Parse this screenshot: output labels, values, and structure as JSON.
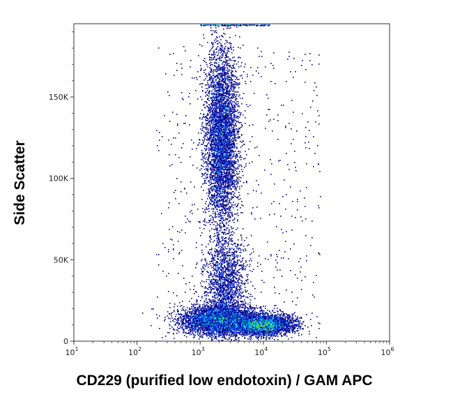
{
  "chart_data": {
    "type": "scatter",
    "title": "",
    "xlabel": "CD229 (purified low endotoxin) / GAM APC",
    "ylabel": "Side Scatter",
    "x_scale": "log",
    "xlim": [
      10,
      1000000
    ],
    "ylim": [
      0,
      195000
    ],
    "x_ticks": [
      {
        "value": 10,
        "base": "10",
        "exp": "1"
      },
      {
        "value": 100,
        "base": "10",
        "exp": "2"
      },
      {
        "value": 1000,
        "base": "10",
        "exp": "3"
      },
      {
        "value": 10000,
        "base": "10",
        "exp": "4"
      },
      {
        "value": 100000,
        "base": "10",
        "exp": "5"
      },
      {
        "value": 1000000,
        "base": "10",
        "exp": "6"
      }
    ],
    "y_ticks": [
      {
        "value": 0,
        "label": "0"
      },
      {
        "value": 50000,
        "label": "50K"
      },
      {
        "value": 100000,
        "label": "100K"
      },
      {
        "value": 150000,
        "label": "150K"
      }
    ],
    "density_colormap": [
      "#00008b",
      "#0040ff",
      "#00b4ff",
      "#00e0a0",
      "#60e040",
      "#ffe000",
      "#ff8000",
      "#e00000"
    ],
    "clusters": [
      {
        "x_center": 2200,
        "y_center": 125000,
        "x_spread_log10": 0.13,
        "y_spread": 28000,
        "points": 5000,
        "peak_density_level": 5
      },
      {
        "x_center": 2500,
        "y_center": 35000,
        "x_spread_log10": 0.16,
        "y_spread": 14000,
        "points": 1600,
        "peak_density_level": 3
      },
      {
        "x_center": 2000,
        "y_center": 13000,
        "x_spread_log10": 0.3,
        "y_spread": 4500,
        "points": 4500,
        "peak_density_level": 5
      },
      {
        "x_center": 10000,
        "y_center": 10000,
        "x_spread_log10": 0.23,
        "y_spread": 3000,
        "points": 4000,
        "peak_density_level": 7
      }
    ],
    "grid": false,
    "legend": "none"
  }
}
